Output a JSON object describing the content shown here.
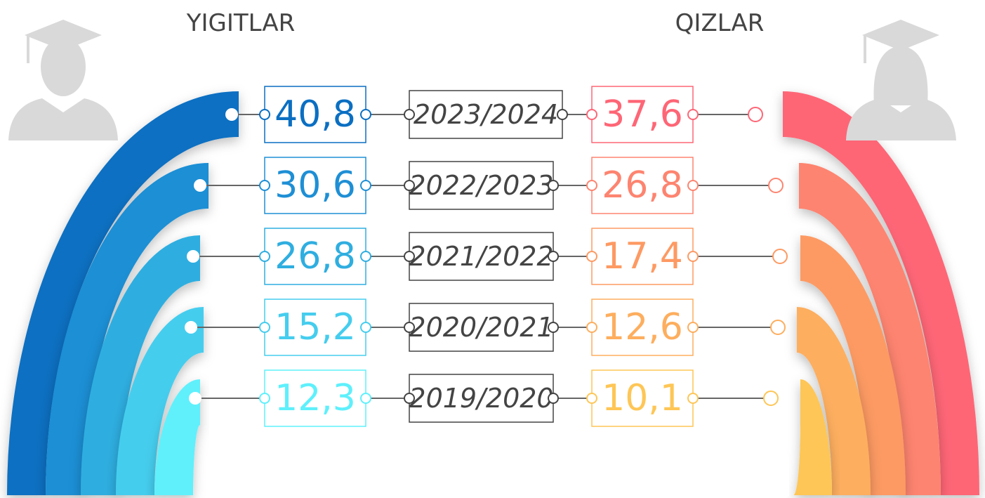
{
  "headings": {
    "left": "YIGITLAR",
    "right": "QIZLAR"
  },
  "rows": [
    {
      "year": "2023/2024",
      "yigitlar": "40,8",
      "qizlar": "37,6"
    },
    {
      "year": "2022/2023",
      "yigitlar": "30,6",
      "qizlar": "26,8"
    },
    {
      "year": "2021/2022",
      "yigitlar": "26,8",
      "qizlar": "17,4"
    },
    {
      "year": "2020/2021",
      "yigitlar": "15,2",
      "qizlar": "12,6"
    },
    {
      "year": "2019/2020",
      "yigitlar": "12,3",
      "qizlar": "10,1"
    }
  ]
}
